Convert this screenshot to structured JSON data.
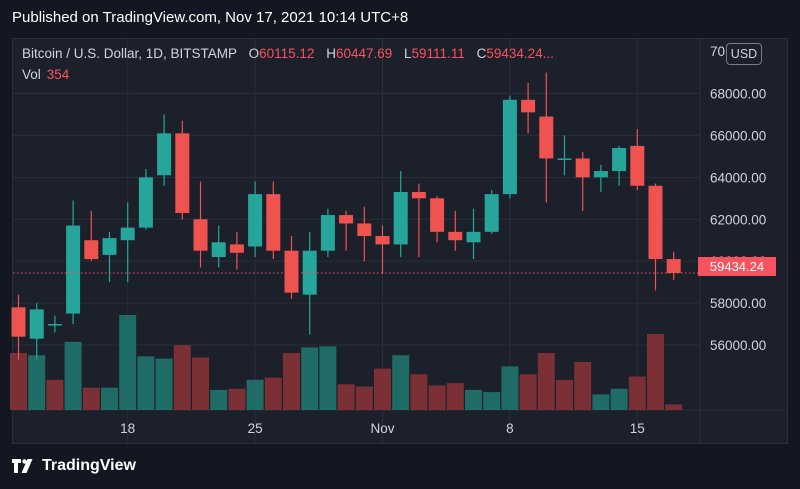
{
  "header": {
    "published": "Published on TradingView.com, Nov 17, 2021 10:14 UTC+8"
  },
  "legend": {
    "symbol": "Bitcoin / U.S. Dollar, 1D, BITSTAMP",
    "o_label": "O",
    "o_value": "60115.12",
    "h_label": "H",
    "h_value": "60447.69",
    "l_label": "L",
    "l_value": "59111.11",
    "c_label": "C",
    "c_value": "59434.24...",
    "vol_label": "Vol",
    "vol_value": "354"
  },
  "currency": "USD",
  "last_price_label": "59434.24",
  "brand": {
    "name": "TradingView",
    "icon": "tradingview-logo-icon"
  },
  "colors": {
    "up": "#26a69a",
    "down": "#ef5350",
    "background": "#131722",
    "grid": "#2a2e39",
    "last_price": "#f7525f"
  },
  "chart_data": {
    "type": "candlestick",
    "x_ticks": [
      "18",
      "25",
      "Nov",
      "8",
      "15"
    ],
    "y_ticks": [
      "56000.00",
      "58000.00",
      "60000.00",
      "62000.00",
      "64000.00",
      "66000.00",
      "68000.00"
    ],
    "y_range": [
      52900,
      70600
    ],
    "last_price": 59434.24,
    "tick_index": {
      "18": 6,
      "25": 13,
      "Nov": 20,
      "8": 27,
      "15": 34
    },
    "candles": [
      {
        "o": 57800,
        "h": 58400,
        "l": 55300,
        "c": 56400
      },
      {
        "o": 56300,
        "h": 58000,
        "l": 55300,
        "c": 57700
      },
      {
        "o": 57000,
        "h": 57400,
        "l": 56600,
        "c": 57000
      },
      {
        "o": 57500,
        "h": 62900,
        "l": 57000,
        "c": 61700
      },
      {
        "o": 61000,
        "h": 62400,
        "l": 60000,
        "c": 60100
      },
      {
        "o": 60300,
        "h": 61400,
        "l": 59000,
        "c": 61100
      },
      {
        "o": 61000,
        "h": 62800,
        "l": 59000,
        "c": 61600
      },
      {
        "o": 61600,
        "h": 64400,
        "l": 61500,
        "c": 64000
      },
      {
        "o": 64100,
        "h": 67000,
        "l": 63600,
        "c": 66100
      },
      {
        "o": 66100,
        "h": 66700,
        "l": 62000,
        "c": 62300
      },
      {
        "o": 62000,
        "h": 63800,
        "l": 59700,
        "c": 60500
      },
      {
        "o": 60200,
        "h": 61700,
        "l": 59700,
        "c": 60900
      },
      {
        "o": 60800,
        "h": 61400,
        "l": 59600,
        "c": 60400
      },
      {
        "o": 60700,
        "h": 63800,
        "l": 60200,
        "c": 63200
      },
      {
        "o": 63200,
        "h": 63800,
        "l": 60100,
        "c": 60500
      },
      {
        "o": 60500,
        "h": 61200,
        "l": 58200,
        "c": 58500
      },
      {
        "o": 58400,
        "h": 61400,
        "l": 56500,
        "c": 60500
      },
      {
        "o": 60500,
        "h": 62500,
        "l": 60200,
        "c": 62200
      },
      {
        "o": 62200,
        "h": 62400,
        "l": 60500,
        "c": 61800
      },
      {
        "o": 61800,
        "h": 62600,
        "l": 60000,
        "c": 61200
      },
      {
        "o": 61200,
        "h": 61700,
        "l": 59400,
        "c": 60800
      },
      {
        "o": 60800,
        "h": 64300,
        "l": 60200,
        "c": 63300
      },
      {
        "o": 63300,
        "h": 63700,
        "l": 60200,
        "c": 63000
      },
      {
        "o": 63000,
        "h": 63100,
        "l": 60900,
        "c": 61400
      },
      {
        "o": 61400,
        "h": 62400,
        "l": 60500,
        "c": 61000
      },
      {
        "o": 60900,
        "h": 62500,
        "l": 60100,
        "c": 61400
      },
      {
        "o": 61400,
        "h": 63400,
        "l": 61300,
        "c": 63200
      },
      {
        "o": 63200,
        "h": 67900,
        "l": 63000,
        "c": 67700
      },
      {
        "o": 67700,
        "h": 68500,
        "l": 66100,
        "c": 67100
      },
      {
        "o": 66900,
        "h": 69000,
        "l": 62800,
        "c": 64900
      },
      {
        "o": 64900,
        "h": 66000,
        "l": 64100,
        "c": 64900
      },
      {
        "o": 64900,
        "h": 65200,
        "l": 62400,
        "c": 64000
      },
      {
        "o": 64000,
        "h": 64600,
        "l": 63300,
        "c": 64300
      },
      {
        "o": 64300,
        "h": 65500,
        "l": 63600,
        "c": 65400
      },
      {
        "o": 65500,
        "h": 66300,
        "l": 63400,
        "c": 63600
      },
      {
        "o": 63600,
        "h": 63700,
        "l": 58600,
        "c": 60100
      },
      {
        "o": 60100,
        "h": 60450,
        "l": 59100,
        "c": 59434
      }
    ],
    "volumes": [
      {
        "v": 5100,
        "dir": "down"
      },
      {
        "v": 4900,
        "dir": "up"
      },
      {
        "v": 2700,
        "dir": "down"
      },
      {
        "v": 6100,
        "dir": "up"
      },
      {
        "v": 2000,
        "dir": "down"
      },
      {
        "v": 2000,
        "dir": "up"
      },
      {
        "v": 8500,
        "dir": "up"
      },
      {
        "v": 4800,
        "dir": "up"
      },
      {
        "v": 4600,
        "dir": "up"
      },
      {
        "v": 5800,
        "dir": "down"
      },
      {
        "v": 4700,
        "dir": "down"
      },
      {
        "v": 1800,
        "dir": "up"
      },
      {
        "v": 1900,
        "dir": "down"
      },
      {
        "v": 2700,
        "dir": "up"
      },
      {
        "v": 2900,
        "dir": "down"
      },
      {
        "v": 5100,
        "dir": "down"
      },
      {
        "v": 5600,
        "dir": "up"
      },
      {
        "v": 5700,
        "dir": "up"
      },
      {
        "v": 2300,
        "dir": "down"
      },
      {
        "v": 2100,
        "dir": "down"
      },
      {
        "v": 3700,
        "dir": "down"
      },
      {
        "v": 4900,
        "dir": "up"
      },
      {
        "v": 3200,
        "dir": "down"
      },
      {
        "v": 2200,
        "dir": "down"
      },
      {
        "v": 2400,
        "dir": "down"
      },
      {
        "v": 1800,
        "dir": "up"
      },
      {
        "v": 1600,
        "dir": "up"
      },
      {
        "v": 3900,
        "dir": "up"
      },
      {
        "v": 3200,
        "dir": "down"
      },
      {
        "v": 5100,
        "dir": "down"
      },
      {
        "v": 2700,
        "dir": "down"
      },
      {
        "v": 4300,
        "dir": "down"
      },
      {
        "v": 1400,
        "dir": "up"
      },
      {
        "v": 1900,
        "dir": "up"
      },
      {
        "v": 3000,
        "dir": "down"
      },
      {
        "v": 6800,
        "dir": "down"
      },
      {
        "v": 500,
        "dir": "down"
      }
    ],
    "volume_max": 8500
  }
}
